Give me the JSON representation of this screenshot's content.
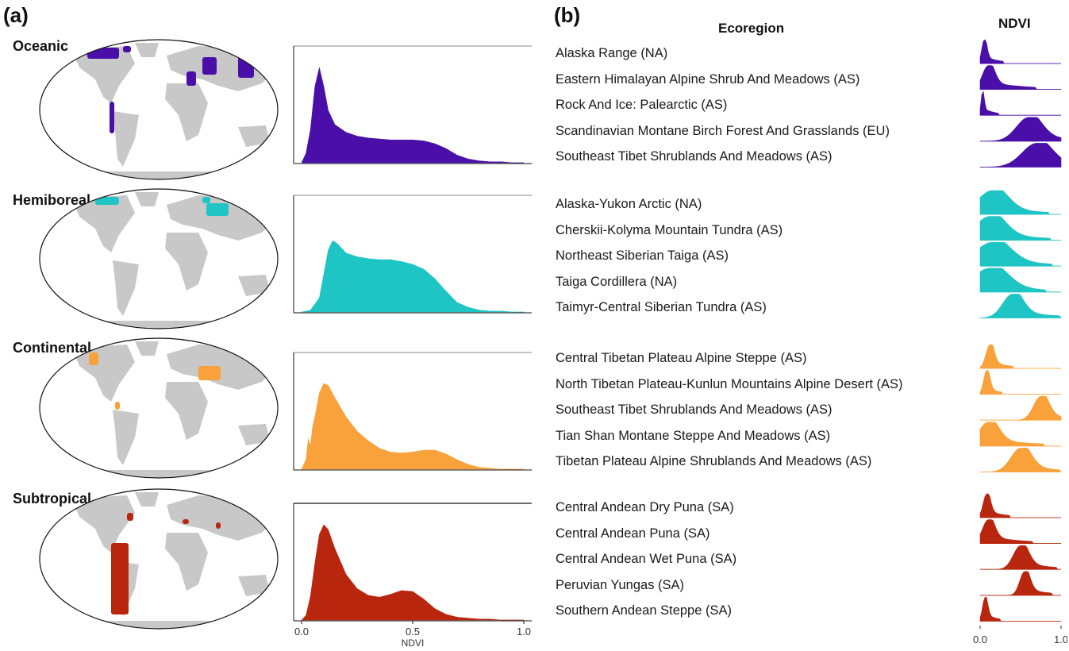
{
  "panel_a_label": "(a)",
  "panel_b_label": "(b)",
  "header_ecoregion": "Ecoregion",
  "header_ndvi": "NDVI",
  "colors": {
    "Oceanic": "#4a0fa8",
    "Hemiboreal": "#1fc4c4",
    "Continental": "#f9a13a",
    "Subtropical": "#b8260e",
    "land": "#c8c8c8"
  },
  "chart_data": [
    {
      "type": "area",
      "description_panel": "a",
      "xlabel": "NDVI",
      "xlim": [
        0.0,
        1.0
      ],
      "xticks": [
        "0.0",
        "0.5",
        "1.0"
      ],
      "grid": false,
      "series": [
        {
          "name": "Oceanic",
          "x": [
            0.0,
            0.02,
            0.04,
            0.06,
            0.08,
            0.1,
            0.12,
            0.15,
            0.2,
            0.25,
            0.3,
            0.35,
            0.4,
            0.45,
            0.5,
            0.55,
            0.6,
            0.65,
            0.7,
            0.75,
            0.8,
            0.85,
            0.9,
            0.95,
            1.0
          ],
          "y": [
            0,
            0.1,
            0.35,
            0.8,
            1.0,
            0.8,
            0.55,
            0.4,
            0.32,
            0.28,
            0.26,
            0.25,
            0.24,
            0.24,
            0.24,
            0.23,
            0.2,
            0.15,
            0.08,
            0.04,
            0.02,
            0.01,
            0.01,
            0,
            0
          ]
        },
        {
          "name": "Hemiboreal",
          "x": [
            0.0,
            0.04,
            0.08,
            0.1,
            0.12,
            0.14,
            0.16,
            0.2,
            0.25,
            0.3,
            0.35,
            0.4,
            0.45,
            0.5,
            0.55,
            0.6,
            0.65,
            0.7,
            0.75,
            0.8,
            0.85,
            0.9,
            0.95,
            1.0
          ],
          "y": [
            0,
            0.02,
            0.15,
            0.4,
            0.65,
            0.75,
            0.72,
            0.62,
            0.58,
            0.56,
            0.55,
            0.55,
            0.53,
            0.5,
            0.45,
            0.35,
            0.22,
            0.1,
            0.05,
            0.02,
            0.01,
            0.01,
            0,
            0
          ]
        },
        {
          "name": "Continental",
          "x": [
            0.0,
            0.02,
            0.03,
            0.04,
            0.05,
            0.06,
            0.08,
            0.1,
            0.12,
            0.15,
            0.2,
            0.25,
            0.3,
            0.35,
            0.4,
            0.45,
            0.5,
            0.55,
            0.6,
            0.65,
            0.7,
            0.75,
            0.8,
            0.85,
            0.9,
            1.0
          ],
          "y": [
            0,
            0.1,
            0.32,
            0.25,
            0.45,
            0.55,
            0.8,
            0.9,
            0.88,
            0.75,
            0.55,
            0.4,
            0.3,
            0.22,
            0.18,
            0.17,
            0.18,
            0.2,
            0.2,
            0.16,
            0.1,
            0.05,
            0.02,
            0.01,
            0,
            0
          ]
        },
        {
          "name": "Subtropical",
          "x": [
            0.0,
            0.02,
            0.04,
            0.06,
            0.08,
            0.1,
            0.12,
            0.15,
            0.2,
            0.25,
            0.3,
            0.35,
            0.4,
            0.45,
            0.5,
            0.55,
            0.6,
            0.65,
            0.7,
            0.75,
            0.8,
            0.85,
            0.9,
            0.95,
            1.0
          ],
          "y": [
            0,
            0.05,
            0.25,
            0.6,
            0.9,
            1.0,
            0.95,
            0.75,
            0.48,
            0.33,
            0.26,
            0.24,
            0.27,
            0.31,
            0.3,
            0.22,
            0.12,
            0.06,
            0.03,
            0.02,
            0.01,
            0.01,
            0,
            0,
            0
          ]
        }
      ]
    },
    {
      "type": "area",
      "description_panel": "b",
      "xlabel": "NDVI",
      "xlim": [
        0.0,
        1.0
      ],
      "xticks": [
        "0.0",
        "1.0"
      ],
      "groups": [
        {
          "group": "Oceanic",
          "ridges": [
            {
              "name": "Alaska Range (NA)",
              "peak": 0.05,
              "spread": 0.05,
              "tail": 0.25
            },
            {
              "name": "Eastern Himalayan Alpine Shrub And Meadows (AS)",
              "peak": 0.1,
              "spread": 0.12,
              "tail": 0.6
            },
            {
              "name": "Rock And Ice: Palearctic (AS)",
              "peak": 0.03,
              "spread": 0.03,
              "tail": 0.2
            },
            {
              "name": "Scandinavian Montane Birch Forest And Grasslands (EU)",
              "peak": 0.6,
              "spread": 0.25,
              "tail": 0.55
            },
            {
              "name": "Southeast Tibet Shrublands And Meadows (AS)",
              "peak": 0.7,
              "spread": 0.3,
              "tail": 0.5
            }
          ]
        },
        {
          "group": "Hemiboreal",
          "ridges": [
            {
              "name": "Alaska-Yukon Arctic (NA)",
              "peak": 0.15,
              "spread": 0.3,
              "tail": 0.7
            },
            {
              "name": "Cherskii-Kolyma Mountain Tundra (AS)",
              "peak": 0.12,
              "spread": 0.3,
              "tail": 0.75
            },
            {
              "name": "Northeast Siberian Taiga (AS)",
              "peak": 0.15,
              "spread": 0.35,
              "tail": 0.75
            },
            {
              "name": "Taiga Cordillera (NA)",
              "peak": 0.12,
              "spread": 0.35,
              "tail": 0.7
            },
            {
              "name": "Taimyr-Central Siberian Tundra (AS)",
              "peak": 0.4,
              "spread": 0.2,
              "tail": 0.6
            }
          ]
        },
        {
          "group": "Continental",
          "ridges": [
            {
              "name": "Central Tibetan Plateau Alpine Steppe (AS)",
              "peak": 0.12,
              "spread": 0.08,
              "tail": 0.3
            },
            {
              "name": "North Tibetan Plateau-Kunlun Mountains Alpine Desert (AS)",
              "peak": 0.08,
              "spread": 0.06,
              "tail": 0.2
            },
            {
              "name": "Southeast Tibet Shrublands And Meadows (AS)",
              "peak": 0.75,
              "spread": 0.15,
              "tail": 0.4
            },
            {
              "name": "Tian Shan Montane Steppe And Meadows (AS)",
              "peak": 0.1,
              "spread": 0.2,
              "tail": 0.7
            },
            {
              "name": "Tibetan Plateau Alpine Shrublands And Meadows (AS)",
              "peak": 0.5,
              "spread": 0.2,
              "tail": 0.5
            }
          ]
        },
        {
          "group": "Subtropical",
          "ridges": [
            {
              "name": "Central Andean Dry Puna (SA)",
              "peak": 0.08,
              "spread": 0.07,
              "tail": 0.3
            },
            {
              "name": "Central Andean Puna (SA)",
              "peak": 0.1,
              "spread": 0.12,
              "tail": 0.55
            },
            {
              "name": "Central Andean Wet Puna (SA)",
              "peak": 0.5,
              "spread": 0.15,
              "tail": 0.45
            },
            {
              "name": "Peruvian Yungas (SA)",
              "peak": 0.55,
              "spread": 0.1,
              "tail": 0.35
            },
            {
              "name": "Southern Andean Steppe (SA)",
              "peak": 0.06,
              "spread": 0.05,
              "tail": 0.2
            }
          ]
        }
      ]
    }
  ]
}
